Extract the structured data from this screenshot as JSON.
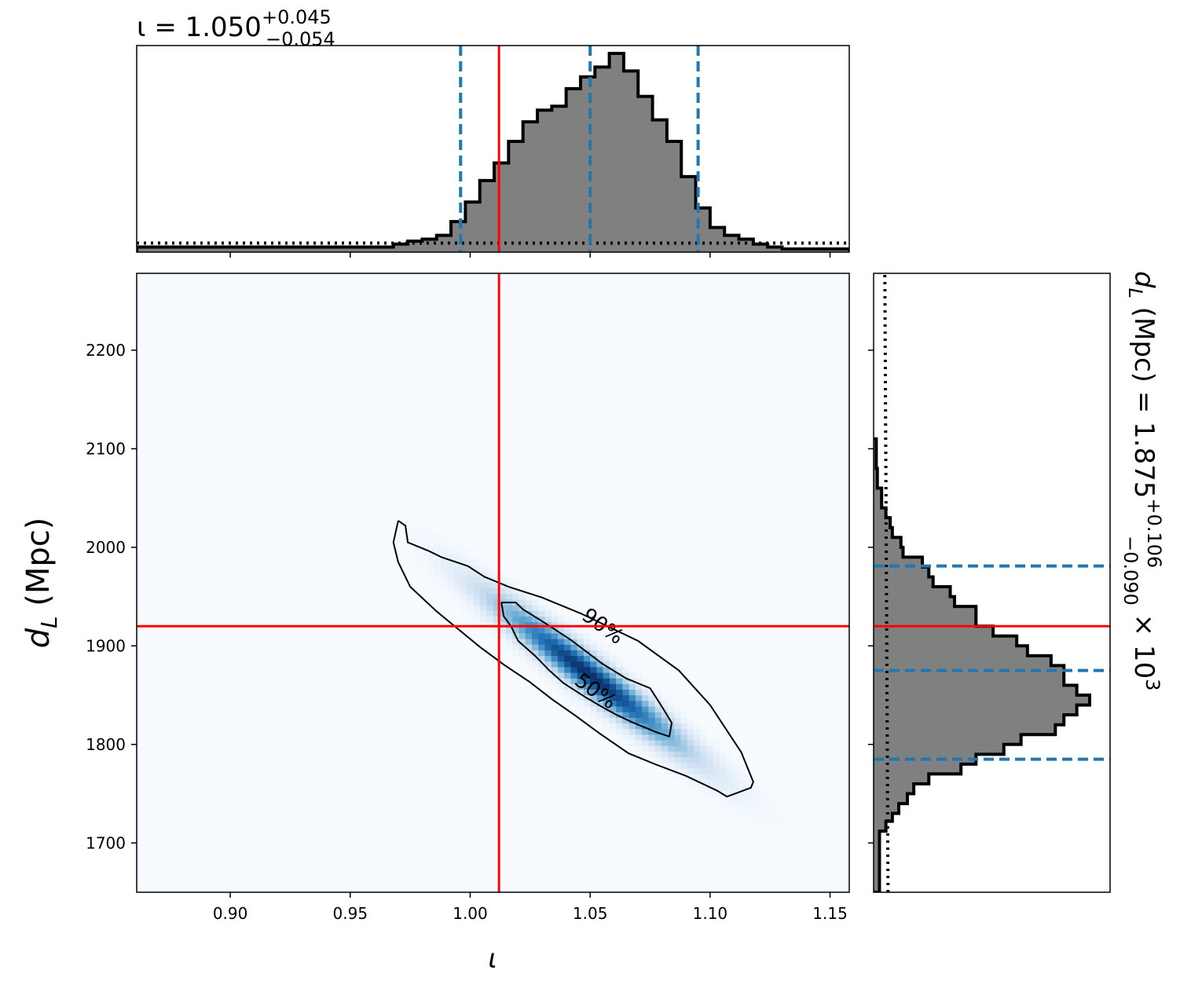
{
  "chart_data": [
    {
      "panel": "top-marginal",
      "type": "histogram",
      "title_prefix": "ι = 1.050",
      "title_sup": "+0.045",
      "title_sub": "−0.054",
      "parameter": "ι",
      "median": 1.05,
      "upper_err": 0.045,
      "lower_err": 0.054,
      "quantile_lines": [
        0.996,
        1.05,
        1.095
      ],
      "true_value": 1.012,
      "xlim": [
        0.861,
        1.158
      ],
      "bins_x": [
        0.861,
        0.968,
        0.974,
        0.98,
        0.986,
        0.992,
        0.998,
        1.004,
        1.01,
        1.016,
        1.022,
        1.028,
        1.034,
        1.04,
        1.046,
        1.052,
        1.058,
        1.064,
        1.07,
        1.076,
        1.082,
        1.088,
        1.094,
        1.1,
        1.106,
        1.112,
        1.118,
        1.124,
        1.13,
        1.158
      ],
      "bins_y": [
        0.01,
        0.025,
        0.04,
        0.05,
        0.07,
        0.14,
        0.24,
        0.35,
        0.44,
        0.55,
        0.65,
        0.71,
        0.73,
        0.82,
        0.88,
        0.93,
        1.0,
        0.91,
        0.78,
        0.66,
        0.55,
        0.37,
        0.21,
        0.11,
        0.07,
        0.05,
        0.025,
        0.01,
        0.0
      ],
      "prior_level": 0.03,
      "colors": {
        "fill": "#808080",
        "edge": "#000000",
        "quantiles": "#1f77b4",
        "truth": "#ff0000"
      }
    },
    {
      "panel": "joint",
      "type": "heatmap",
      "xlabel": "ι",
      "ylabel": "d",
      "ylabel_sub": "L",
      "ylabel_unit": " (Mpc)",
      "xlim": [
        0.861,
        1.158
      ],
      "ylim": [
        1650,
        2278
      ],
      "xticks": [
        "0.90",
        "0.95",
        "1.00",
        "1.05",
        "1.10",
        "1.15"
      ],
      "xtick_values": [
        0.9,
        0.95,
        1.0,
        1.05,
        1.1,
        1.15
      ],
      "yticks": [
        "1700",
        "1800",
        "1900",
        "2000",
        "2100",
        "2200"
      ],
      "ytick_values": [
        1700,
        1800,
        1900,
        2000,
        2100,
        2200
      ],
      "truth": {
        "x": 1.012,
        "y": 1920
      },
      "peak": {
        "x": 1.05,
        "y": 1870
      },
      "correlation": -0.96,
      "sigma": {
        "x": 0.027,
        "y": 52
      },
      "contours": [
        {
          "label": "90%",
          "label_at": {
            "x": 1.046,
            "y": 1928
          },
          "points": [
            [
              0.97,
              2027
            ],
            [
              0.973,
              2022
            ],
            [
              0.974,
              2005
            ],
            [
              0.983,
              1996
            ],
            [
              0.988,
              1990
            ],
            [
              0.999,
              1981
            ],
            [
              1.006,
              1970
            ],
            [
              1.016,
              1960
            ],
            [
              1.03,
              1949
            ],
            [
              1.046,
              1933
            ],
            [
              1.07,
              1905
            ],
            [
              1.087,
              1875
            ],
            [
              1.1,
              1840
            ],
            [
              1.113,
              1792
            ],
            [
              1.118,
              1762
            ],
            [
              1.117,
              1756
            ],
            [
              1.107,
              1747
            ],
            [
              1.103,
              1753
            ],
            [
              1.09,
              1768
            ],
            [
              1.077,
              1780
            ],
            [
              1.066,
              1791
            ],
            [
              1.054,
              1811
            ],
            [
              1.044,
              1829
            ],
            [
              1.034,
              1846
            ],
            [
              1.025,
              1863
            ],
            [
              1.014,
              1881
            ],
            [
              1.004,
              1899
            ],
            [
              0.995,
              1917
            ],
            [
              0.986,
              1935
            ],
            [
              0.975,
              1960
            ],
            [
              0.97,
              1985
            ],
            [
              0.968,
              2005
            ],
            [
              0.97,
              2027
            ]
          ]
        },
        {
          "label": "50%",
          "label_at": {
            "x": 1.043,
            "y": 1862
          },
          "points": [
            [
              1.013,
              1944
            ],
            [
              1.019,
              1944
            ],
            [
              1.022,
              1937
            ],
            [
              1.03,
              1925
            ],
            [
              1.042,
              1906
            ],
            [
              1.055,
              1882
            ],
            [
              1.065,
              1867
            ],
            [
              1.075,
              1857
            ],
            [
              1.08,
              1838
            ],
            [
              1.084,
              1822
            ],
            [
              1.083,
              1808
            ],
            [
              1.078,
              1812
            ],
            [
              1.068,
              1822
            ],
            [
              1.061,
              1830
            ],
            [
              1.055,
              1838
            ],
            [
              1.048,
              1848
            ],
            [
              1.039,
              1862
            ],
            [
              1.033,
              1875
            ],
            [
              1.027,
              1890
            ],
            [
              1.02,
              1905
            ],
            [
              1.017,
              1920
            ],
            [
              1.014,
              1930
            ],
            [
              1.013,
              1944
            ]
          ]
        }
      ],
      "colormap": "Blues",
      "colors": {
        "truth": "#ff0000",
        "contour": "#000000"
      }
    },
    {
      "panel": "right-marginal",
      "type": "histogram",
      "orientation": "horizontal",
      "label_prefix": "d",
      "label_sub": "L",
      "label_mid": " (Mpc) = 1.875",
      "label_sup": "+0.106",
      "label_sub2": "−0.090",
      "label_suffix": " × 10",
      "label_exp": "3",
      "median": 1875,
      "quantile_lines": [
        1785,
        1875,
        1981
      ],
      "true_value": 1920,
      "ylim": [
        1650,
        2278
      ],
      "bins_edges": [
        1650,
        1712,
        1722,
        1730,
        1740,
        1750,
        1760,
        1770,
        1780,
        1790,
        1800,
        1810,
        1820,
        1830,
        1840,
        1850,
        1860,
        1870,
        1880,
        1890,
        1900,
        1910,
        1920,
        1930,
        1940,
        1950,
        1960,
        1970,
        1980,
        1990,
        2000,
        2010,
        2020,
        2030,
        2040,
        2060,
        2080,
        2110
      ],
      "bins_counts": [
        0.02,
        0.05,
        0.08,
        0.11,
        0.15,
        0.18,
        0.25,
        0.4,
        0.47,
        0.6,
        0.68,
        0.84,
        0.88,
        0.94,
        1.0,
        0.94,
        0.88,
        0.88,
        0.82,
        0.71,
        0.66,
        0.55,
        0.47,
        0.47,
        0.37,
        0.35,
        0.27,
        0.25,
        0.22,
        0.13,
        0.12,
        0.08,
        0.07,
        0.05,
        0.03,
        0.01,
        0.005
      ],
      "prior_level": 0.06,
      "colors": {
        "fill": "#808080",
        "edge": "#000000",
        "quantiles": "#1f77b4",
        "truth": "#ff0000"
      }
    }
  ]
}
